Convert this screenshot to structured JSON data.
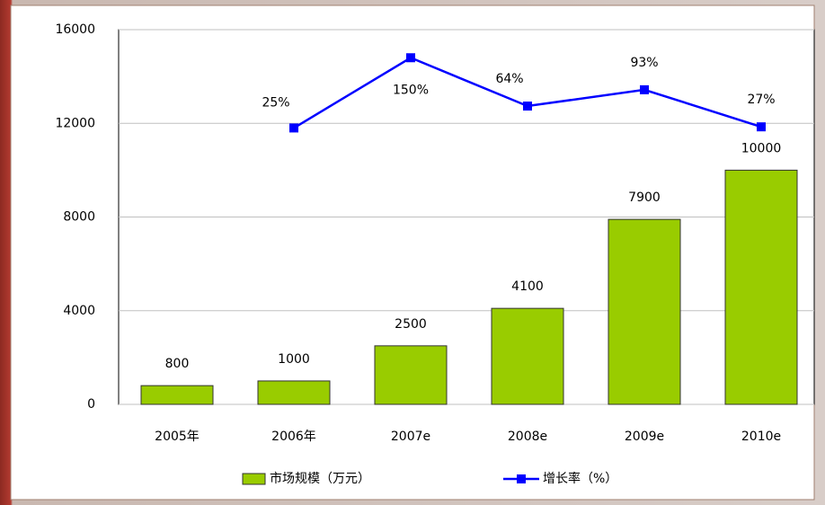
{
  "chart_data": {
    "type": "bar",
    "categories": [
      "2005年",
      "2006年",
      "2007e",
      "2008e",
      "2009e",
      "2010e"
    ],
    "series": [
      {
        "name": "市场规模（万元）",
        "color": "#99cc00",
        "values": [
          800,
          1000,
          2500,
          4100,
          7900,
          10000
        ]
      },
      {
        "name": "增长率（%）",
        "color": "#0000ff",
        "type": "line",
        "axis": "y2",
        "values": [
          null,
          25,
          150,
          64,
          93,
          27
        ],
        "value_labels": [
          null,
          "25%",
          "150%",
          "64%",
          "93%",
          "27%"
        ]
      }
    ],
    "ylim": [
      0,
      16000
    ],
    "yticks": [
      0,
      4000,
      8000,
      12000,
      16000
    ],
    "y2lim": [
      -467,
      200
    ],
    "grid": true,
    "legend": "bottom"
  }
}
